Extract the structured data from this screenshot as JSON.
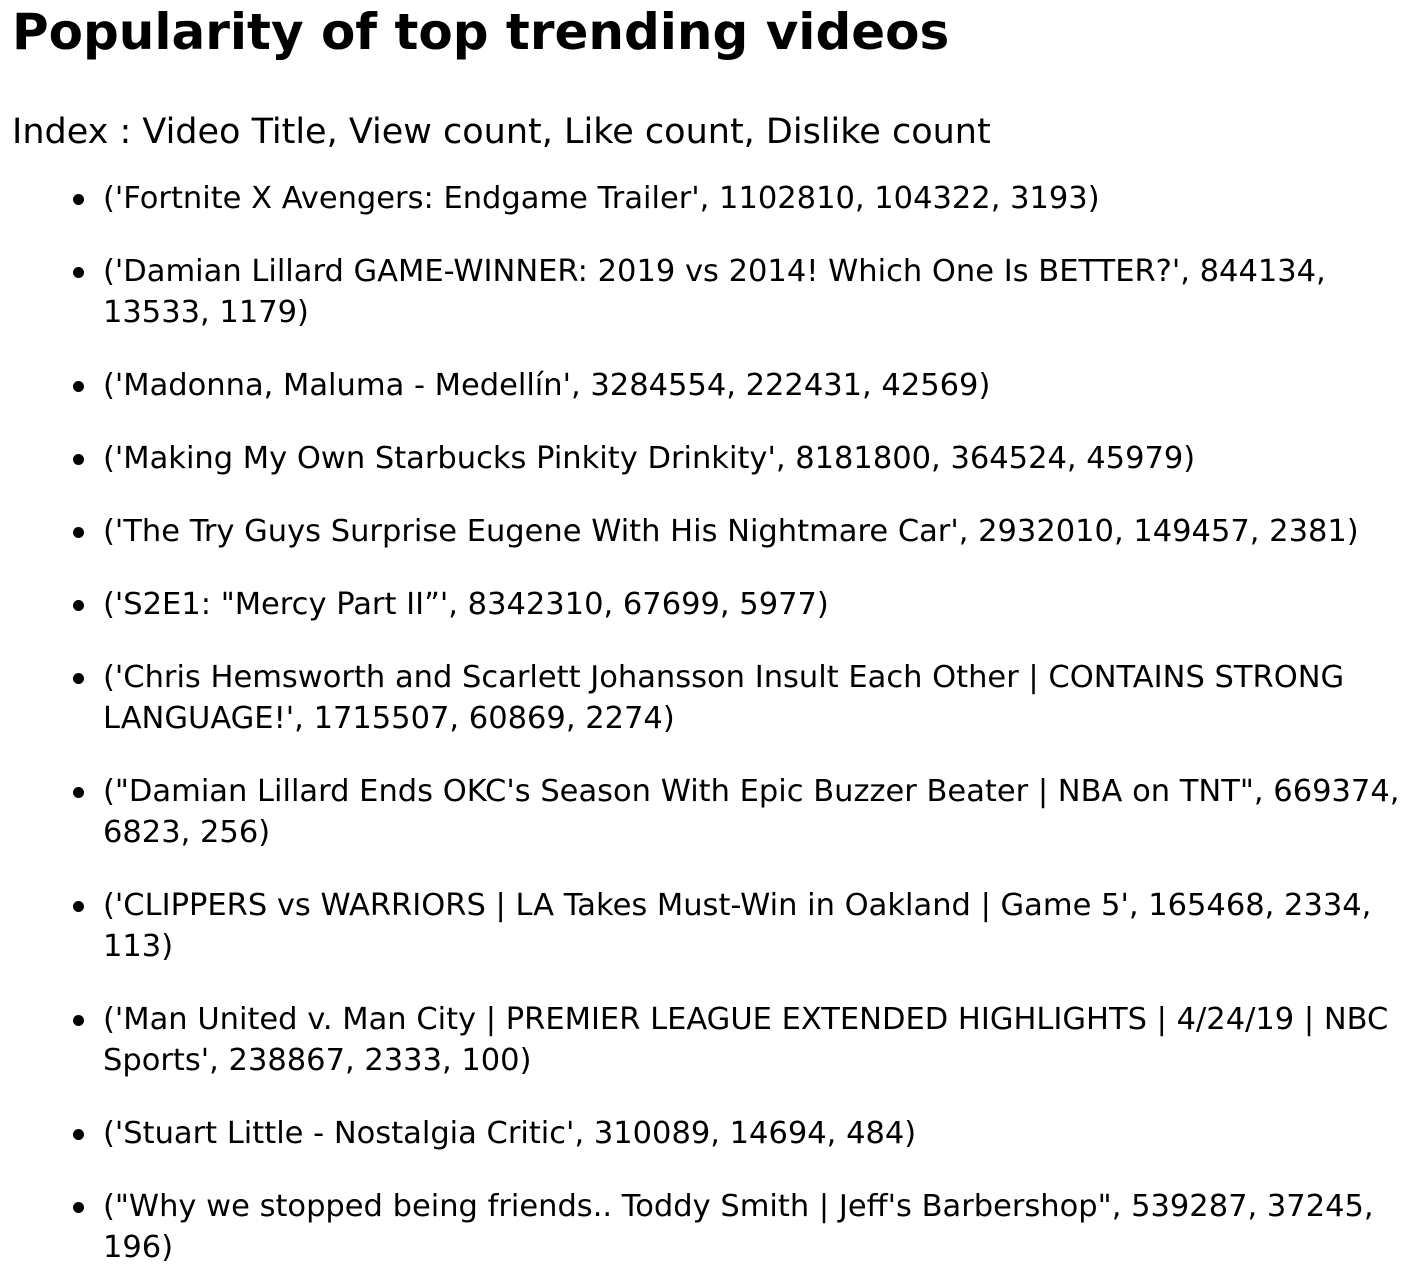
{
  "page": {
    "title": "Popularity of top trending videos",
    "legend": "Index : Video Title, View count, Like count, Dislike count"
  },
  "videos": [
    "('Fortnite X Avengers: Endgame Trailer', 1102810, 104322, 3193)",
    "('Damian Lillard GAME-WINNER: 2019 vs 2014! Which One Is BETTER?', 844134, 13533, 1179)",
    "('Madonna, Maluma - Medellín', 3284554, 222431, 42569)",
    "('Making My Own Starbucks Pinkity Drinkity', 8181800, 364524, 45979)",
    "('The Try Guys Surprise Eugene With His Nightmare Car', 2932010, 149457, 2381)",
    "('S2E1: \"Mercy Part II”', 8342310, 67699, 5977)",
    "('Chris Hemsworth and Scarlett Johansson Insult Each Other | CONTAINS STRONG LANGUAGE!', 1715507, 60869, 2274)",
    "(\"Damian Lillard Ends OKC's Season With Epic Buzzer Beater | NBA on TNT\", 669374, 6823, 256)",
    "('CLIPPERS vs WARRIORS | LA Takes Must-Win in Oakland | Game 5', 165468, 2334, 113)",
    "('Man United v. Man City | PREMIER LEAGUE EXTENDED HIGHLIGHTS | 4/24/19 | NBC Sports', 238867, 2333, 100)",
    "('Stuart Little - Nostalgia Critic', 310089, 14694, 484)",
    "(\"Why we stopped being friends.. Toddy Smith | Jeff's Barbershop\", 539287, 37245, 196)"
  ]
}
